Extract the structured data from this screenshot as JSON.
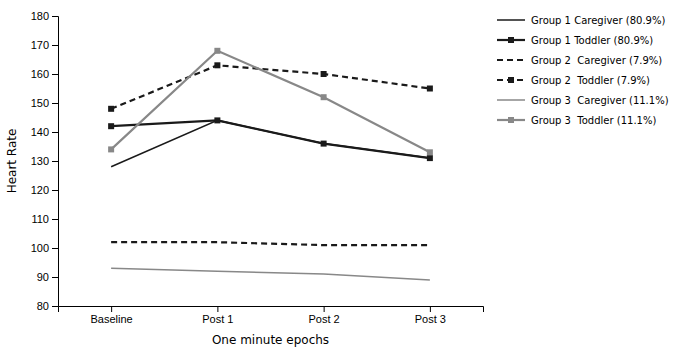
{
  "chart_data": {
    "type": "line",
    "xlabel": "One minute epochs",
    "ylabel": "Heart Rate",
    "categories": [
      "Baseline",
      "Post 1",
      "Post 2",
      "Post 3"
    ],
    "series": [
      {
        "name": "Group 1 Caregiver (80.9%)",
        "color": "#1a1a1a",
        "values": [
          128,
          144,
          136,
          131
        ],
        "marker": "none",
        "line_style": "solid"
      },
      {
        "name": "Group 1 Toddler (80.9%)",
        "color": "#1a1a1a",
        "values": [
          142,
          144,
          136,
          131
        ],
        "marker": "square",
        "line_style": "solid"
      },
      {
        "name": "Group 2  Caregiver (7.9%)",
        "color": "#1a1a1a",
        "values": [
          102,
          102,
          101,
          101
        ],
        "marker": "none",
        "line_style": "dashed"
      },
      {
        "name": "Group 2  Toddler (7.9%)",
        "color": "#1a1a1a",
        "values": [
          148,
          163,
          160,
          155
        ],
        "marker": "square",
        "line_style": "dashed"
      },
      {
        "name": "Group 3  Caregiver (11.1%)",
        "color": "#888888",
        "values": [
          93,
          92,
          91,
          89
        ],
        "marker": "none",
        "line_style": "solid"
      },
      {
        "name": "Group 3  Toddler (11.1%)",
        "color": "#888888",
        "values": [
          134,
          168,
          152,
          133
        ],
        "marker": "square",
        "line_style": "solid"
      }
    ],
    "ylim": [
      80,
      180
    ],
    "yticks": [
      80,
      90,
      100,
      110,
      120,
      130,
      140,
      150,
      160,
      170,
      180
    ],
    "grid": false,
    "legend": "right"
  }
}
